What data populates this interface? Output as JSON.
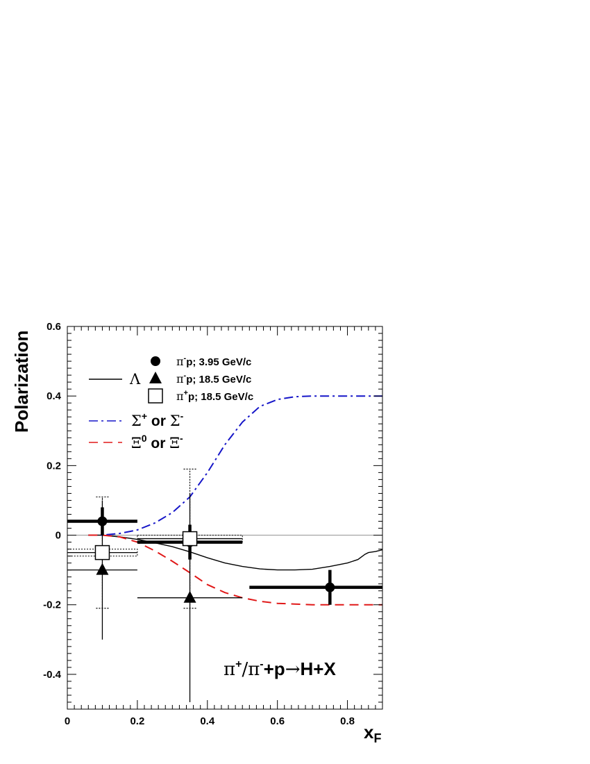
{
  "chart_data": {
    "type": "scatter",
    "xlabel": "x",
    "xlabel_sub": "F",
    "ylabel": "Polarization",
    "xlim": [
      0,
      0.9
    ],
    "ylim": [
      -0.5,
      0.6
    ],
    "x_ticks": [
      "0",
      "0.2",
      "0.4",
      "0.6",
      "0.8"
    ],
    "y_ticks": [
      "0.6",
      "0.4",
      "0.2",
      "0",
      "-0.2",
      "-0.4"
    ],
    "legend": {
      "placement": "top-left",
      "lambda_symbol": "Λ",
      "marker_entries": [
        {
          "marker": "circle",
          "pi": "π",
          "charge": "-",
          "rest": "p; 3.95 GeV/c"
        },
        {
          "marker": "triangle",
          "pi": "π",
          "charge": "-",
          "rest": "p; 18.5 GeV/c"
        },
        {
          "marker": "open-square",
          "pi": "π",
          "charge": "+",
          "rest": "p; 18.5 GeV/c"
        }
      ],
      "sigma": {
        "g1": "Σ",
        "sup1": "+",
        "mid": " or ",
        "g2": "Σ",
        "sup2": "-"
      },
      "xi": {
        "g1": "Ξ",
        "sup1": "0",
        "mid": " or ",
        "g2": "Ξ",
        "sup2": "-"
      }
    },
    "annotation": {
      "pi1": "π",
      "sup1": "+",
      "slash": "/",
      "pi2": "π",
      "sup2": "-",
      "p": "+p",
      "arrow": "→",
      "rest": "H+X"
    },
    "series": [
      {
        "marker": "circle",
        "stat_thick": true,
        "points": [
          {
            "x": 0.1,
            "y": 0.04,
            "xerr": [
              0.0,
              0.2
            ],
            "ystat": [
              0.0,
              0.08
            ],
            "ysys": [
              -0.04,
              0.11
            ]
          },
          {
            "x": 0.35,
            "y": -0.02,
            "xerr": [
              0.2,
              0.5
            ],
            "ystat": [
              -0.07,
              0.03
            ]
          },
          {
            "x": 0.75,
            "y": -0.15,
            "xerr": [
              0.52,
              0.9
            ],
            "ystat": [
              -0.2,
              -0.1
            ]
          }
        ]
      },
      {
        "marker": "triangle",
        "stat_thick": false,
        "points": [
          {
            "x": 0.1,
            "y": -0.1,
            "xerr": [
              0.0,
              0.2
            ],
            "ystat": [
              -0.3,
              0.1
            ],
            "ysys": [
              -0.21,
              0.11
            ]
          },
          {
            "x": 0.35,
            "y": -0.18,
            "xerr": [
              0.2,
              0.5
            ],
            "ystat": [
              -0.48,
              0.12
            ],
            "ysys": [
              -0.21,
              0.19
            ]
          }
        ]
      },
      {
        "marker": "open-square",
        "stat_thick": false,
        "points": [
          {
            "x": 0.1,
            "y": -0.05,
            "xerr": [
              0.0,
              0.2
            ],
            "ystat": [
              -0.05,
              -0.05
            ],
            "ysys": [
              -0.21,
              0.11
            ],
            "xsys": [
              0.0,
              0.2
            ]
          },
          {
            "x": 0.35,
            "y": -0.01,
            "xerr": [
              0.2,
              0.5
            ],
            "ystat": [
              -0.07,
              0.03
            ],
            "ysys": [
              -0.21,
              0.19
            ],
            "xsys": [
              0.2,
              0.5
            ]
          }
        ]
      }
    ],
    "curves": [
      {
        "hyperon": "Lambda",
        "style": "solid",
        "color": "#000000",
        "x": [
          0.06,
          0.1,
          0.15,
          0.2,
          0.25,
          0.3,
          0.35,
          0.4,
          0.45,
          0.5,
          0.55,
          0.6,
          0.65,
          0.7,
          0.75,
          0.8,
          0.83,
          0.85,
          0.86,
          0.88,
          0.9
        ],
        "y": [
          0.0,
          0.0,
          -0.005,
          -0.012,
          -0.022,
          -0.033,
          -0.048,
          -0.065,
          -0.08,
          -0.09,
          -0.097,
          -0.1,
          -0.1,
          -0.098,
          -0.09,
          -0.08,
          -0.07,
          -0.055,
          -0.05,
          -0.047,
          -0.042
        ]
      },
      {
        "hyperon": "Sigma",
        "style": "dash-dot",
        "color": "#1515c8",
        "x": [
          0.06,
          0.1,
          0.15,
          0.2,
          0.25,
          0.3,
          0.35,
          0.4,
          0.45,
          0.5,
          0.55,
          0.6,
          0.65,
          0.7,
          0.75,
          0.8,
          0.85,
          0.9
        ],
        "y": [
          0.0,
          0.0,
          0.005,
          0.015,
          0.035,
          0.065,
          0.11,
          0.18,
          0.26,
          0.325,
          0.37,
          0.39,
          0.398,
          0.4,
          0.4,
          0.4,
          0.4,
          0.4
        ]
      },
      {
        "hyperon": "Xi",
        "style": "dashed",
        "color": "#e01818",
        "x": [
          0.06,
          0.1,
          0.15,
          0.2,
          0.25,
          0.3,
          0.35,
          0.4,
          0.45,
          0.5,
          0.55,
          0.6,
          0.65,
          0.7,
          0.75,
          0.8,
          0.85,
          0.9
        ],
        "y": [
          0.0,
          0.0,
          -0.005,
          -0.02,
          -0.045,
          -0.075,
          -0.108,
          -0.142,
          -0.165,
          -0.18,
          -0.19,
          -0.196,
          -0.198,
          -0.2,
          -0.2,
          -0.2,
          -0.2,
          -0.2
        ]
      }
    ]
  }
}
